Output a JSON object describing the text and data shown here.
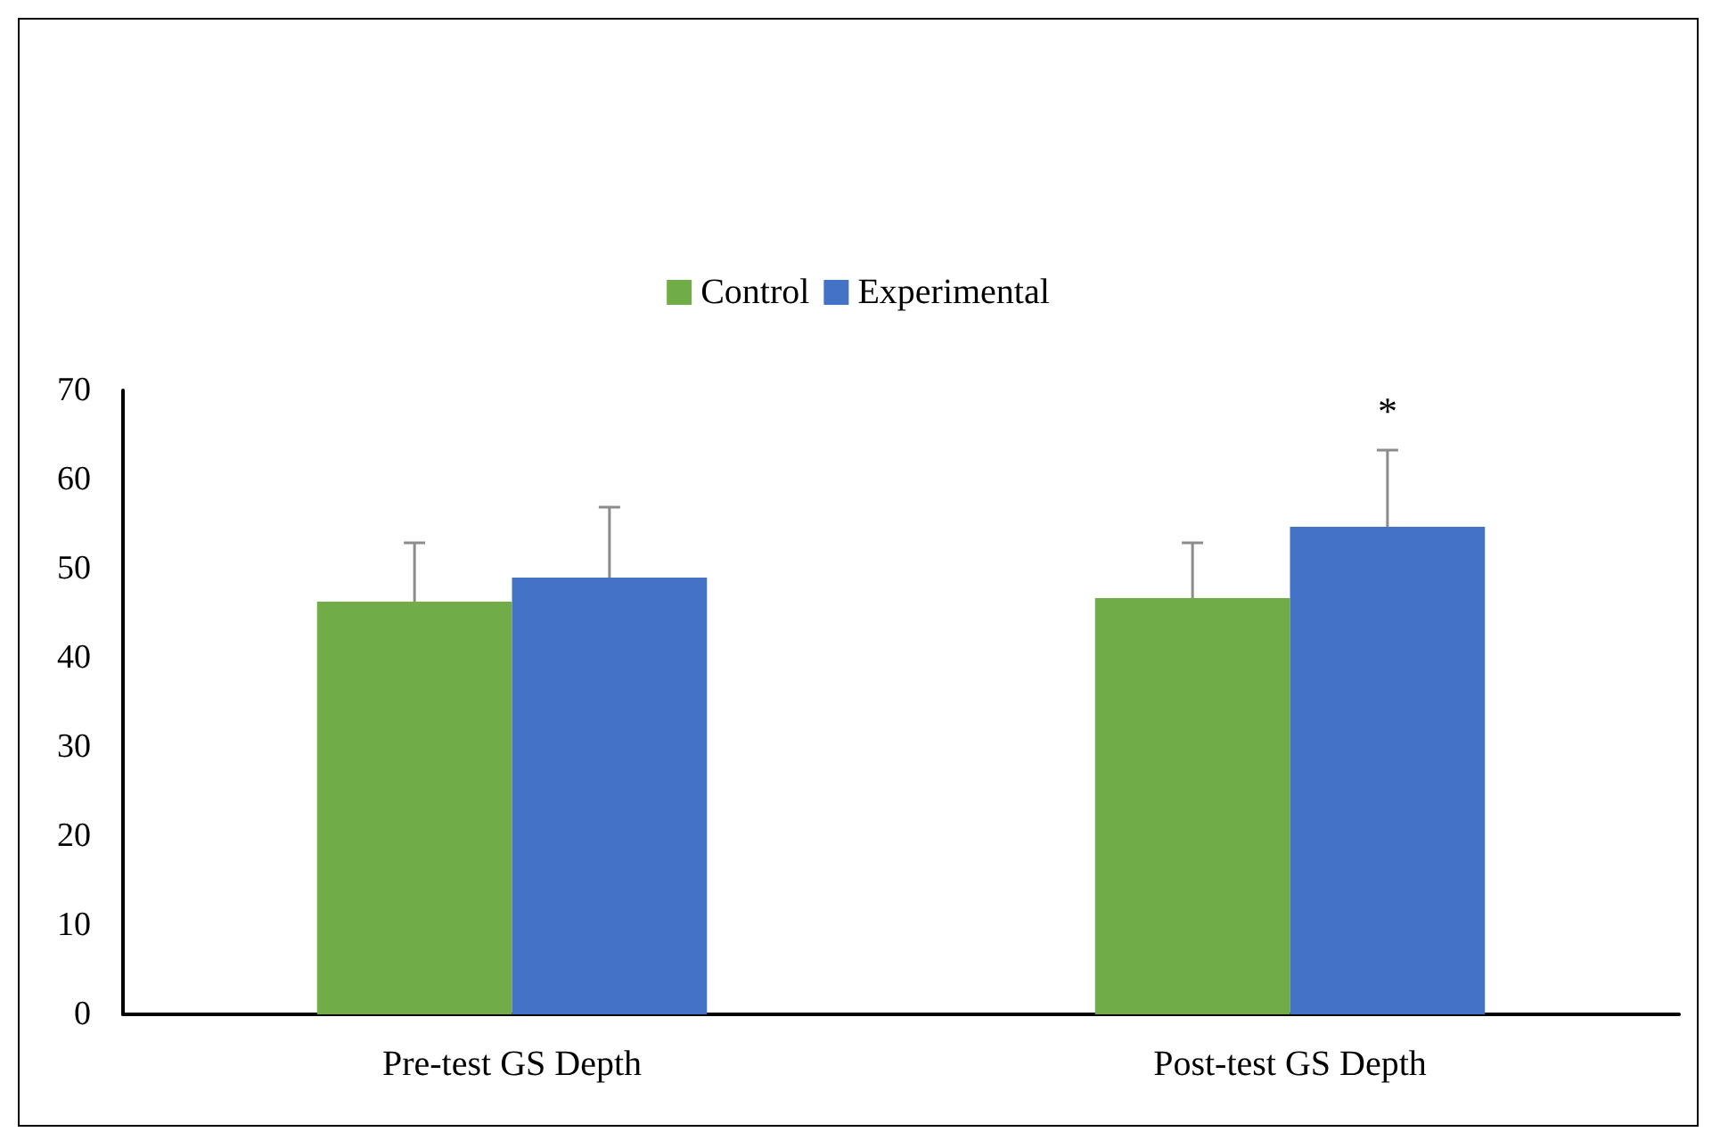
{
  "chart_data": {
    "type": "bar",
    "categories": [
      "Pre-test GS Depth",
      "Post-test GS Depth"
    ],
    "series": [
      {
        "name": "Control",
        "color": "#70ad47",
        "values": [
          46.3,
          46.7
        ],
        "errors": [
          [
            46.3,
            52.9
          ],
          [
            46.7,
            52.9
          ]
        ]
      },
      {
        "name": "Experimental",
        "color": "#4472c4",
        "values": [
          49.0,
          54.7
        ],
        "errors": [
          [
            49.0,
            56.9
          ],
          [
            54.7,
            63.3
          ]
        ]
      }
    ],
    "ylim": [
      0,
      70
    ],
    "yticks": [
      0,
      10,
      20,
      30,
      40,
      50,
      60,
      70
    ],
    "grid": false,
    "legend": "top",
    "annotations": [
      "*"
    ]
  }
}
